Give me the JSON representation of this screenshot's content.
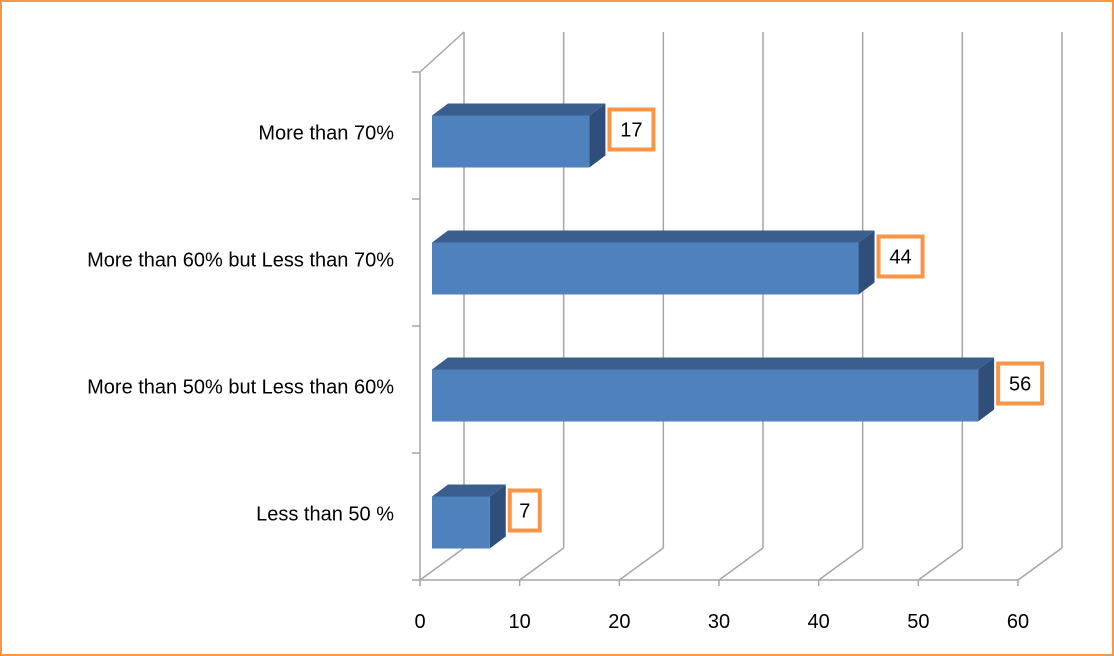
{
  "chart_data": {
    "type": "bar",
    "orientation": "horizontal",
    "style": "3d",
    "categories": [
      "Less than 50 %",
      "More than 50% but Less than 60%",
      "More than 60% but Less than 70%",
      "More than 70%"
    ],
    "values": [
      7,
      56,
      44,
      17
    ],
    "data_labels": [
      "7",
      "56",
      "44",
      "17"
    ],
    "xlim": [
      0,
      60
    ],
    "x_ticks": [
      "0",
      "10",
      "20",
      "30",
      "40",
      "50",
      "60"
    ],
    "title": "",
    "xlabel": "",
    "ylabel": "",
    "grid": true,
    "legend": "none",
    "colors": {
      "bar_front": "#4F81BD",
      "bar_top": "#5A8ACB",
      "bar_side": "#3A5F8F",
      "label_border": "#F79646",
      "frame_border": "#F79646",
      "grid": "#A6A6A6"
    }
  }
}
